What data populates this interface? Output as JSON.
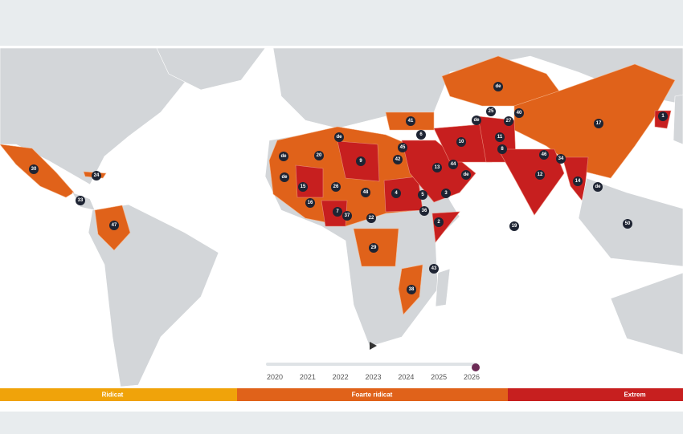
{
  "timeline": {
    "years": [
      "2020",
      "2021",
      "2022",
      "2023",
      "2024",
      "2025",
      "2026"
    ]
  },
  "legend": [
    {
      "label": "Ridicat"
    },
    {
      "label": "Foarte ridicat"
    },
    {
      "label": "Extrem"
    }
  ],
  "markers": [
    "30",
    "24",
    "33",
    "47",
    "20",
    "15",
    "16",
    "26",
    "9",
    "42",
    "48",
    "4",
    "7",
    "37",
    "22",
    "29",
    "5",
    "36",
    "2",
    "3",
    "43",
    "38",
    "13",
    "44",
    "6",
    "41",
    "10",
    "11",
    "8",
    "12",
    "14",
    "19",
    "50",
    "17",
    "1",
    "25",
    "27",
    "40",
    "34",
    "46",
    "45",
    "de",
    "de",
    "de",
    "de",
    "de",
    "de",
    "de"
  ]
}
